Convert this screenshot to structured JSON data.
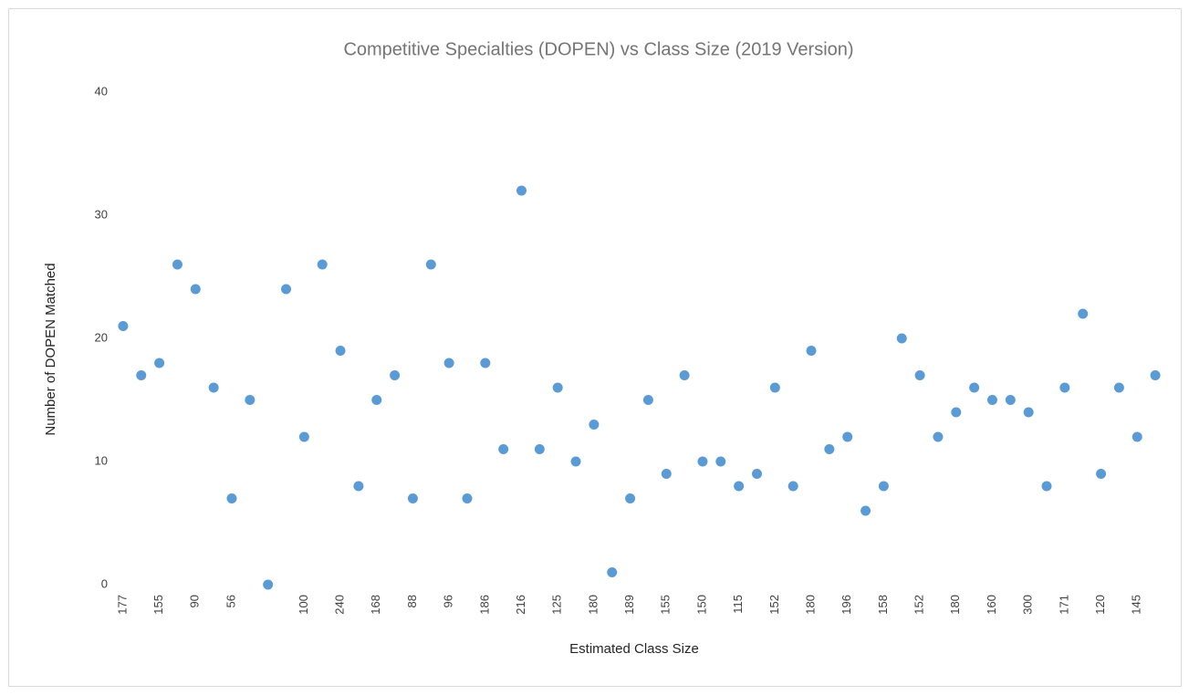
{
  "chart_data": {
    "type": "scatter",
    "title": "Competitive Specialties (DOPEN) vs Class Size (2019 Version)",
    "x_label": "Estimated Class Size",
    "y_label": "Number of DOPEN Matched",
    "categories": [
      "177",
      null,
      "155",
      null,
      "90",
      null,
      "56",
      null,
      null,
      null,
      "100",
      null,
      "240",
      null,
      "168",
      null,
      "88",
      null,
      "96",
      null,
      "186",
      null,
      "216",
      null,
      "125",
      null,
      "180",
      null,
      "189",
      null,
      "155",
      null,
      "150",
      null,
      "115",
      null,
      "152",
      null,
      "180",
      null,
      "196",
      null,
      "158",
      null,
      "152",
      null,
      "180",
      null,
      "160",
      null,
      "300",
      null,
      "171",
      null,
      "120",
      null,
      "145",
      null
    ],
    "values": [
      21,
      17,
      18,
      26,
      24,
      16,
      7,
      15,
      0,
      24,
      12,
      26,
      19,
      8,
      15,
      17,
      7,
      26,
      18,
      7,
      18,
      11,
      32,
      11,
      16,
      10,
      13,
      1,
      7,
      15,
      9,
      17,
      10,
      10,
      8,
      9,
      16,
      8,
      19,
      11,
      12,
      6,
      8,
      20,
      17,
      12,
      14,
      16,
      15,
      15,
      14,
      8,
      16,
      22,
      9,
      16,
      12,
      17
    ],
    "color": "#5b9bd5",
    "ylim": [
      0,
      40
    ],
    "yticks": [
      0,
      10,
      20,
      30,
      40
    ],
    "grid": false
  }
}
